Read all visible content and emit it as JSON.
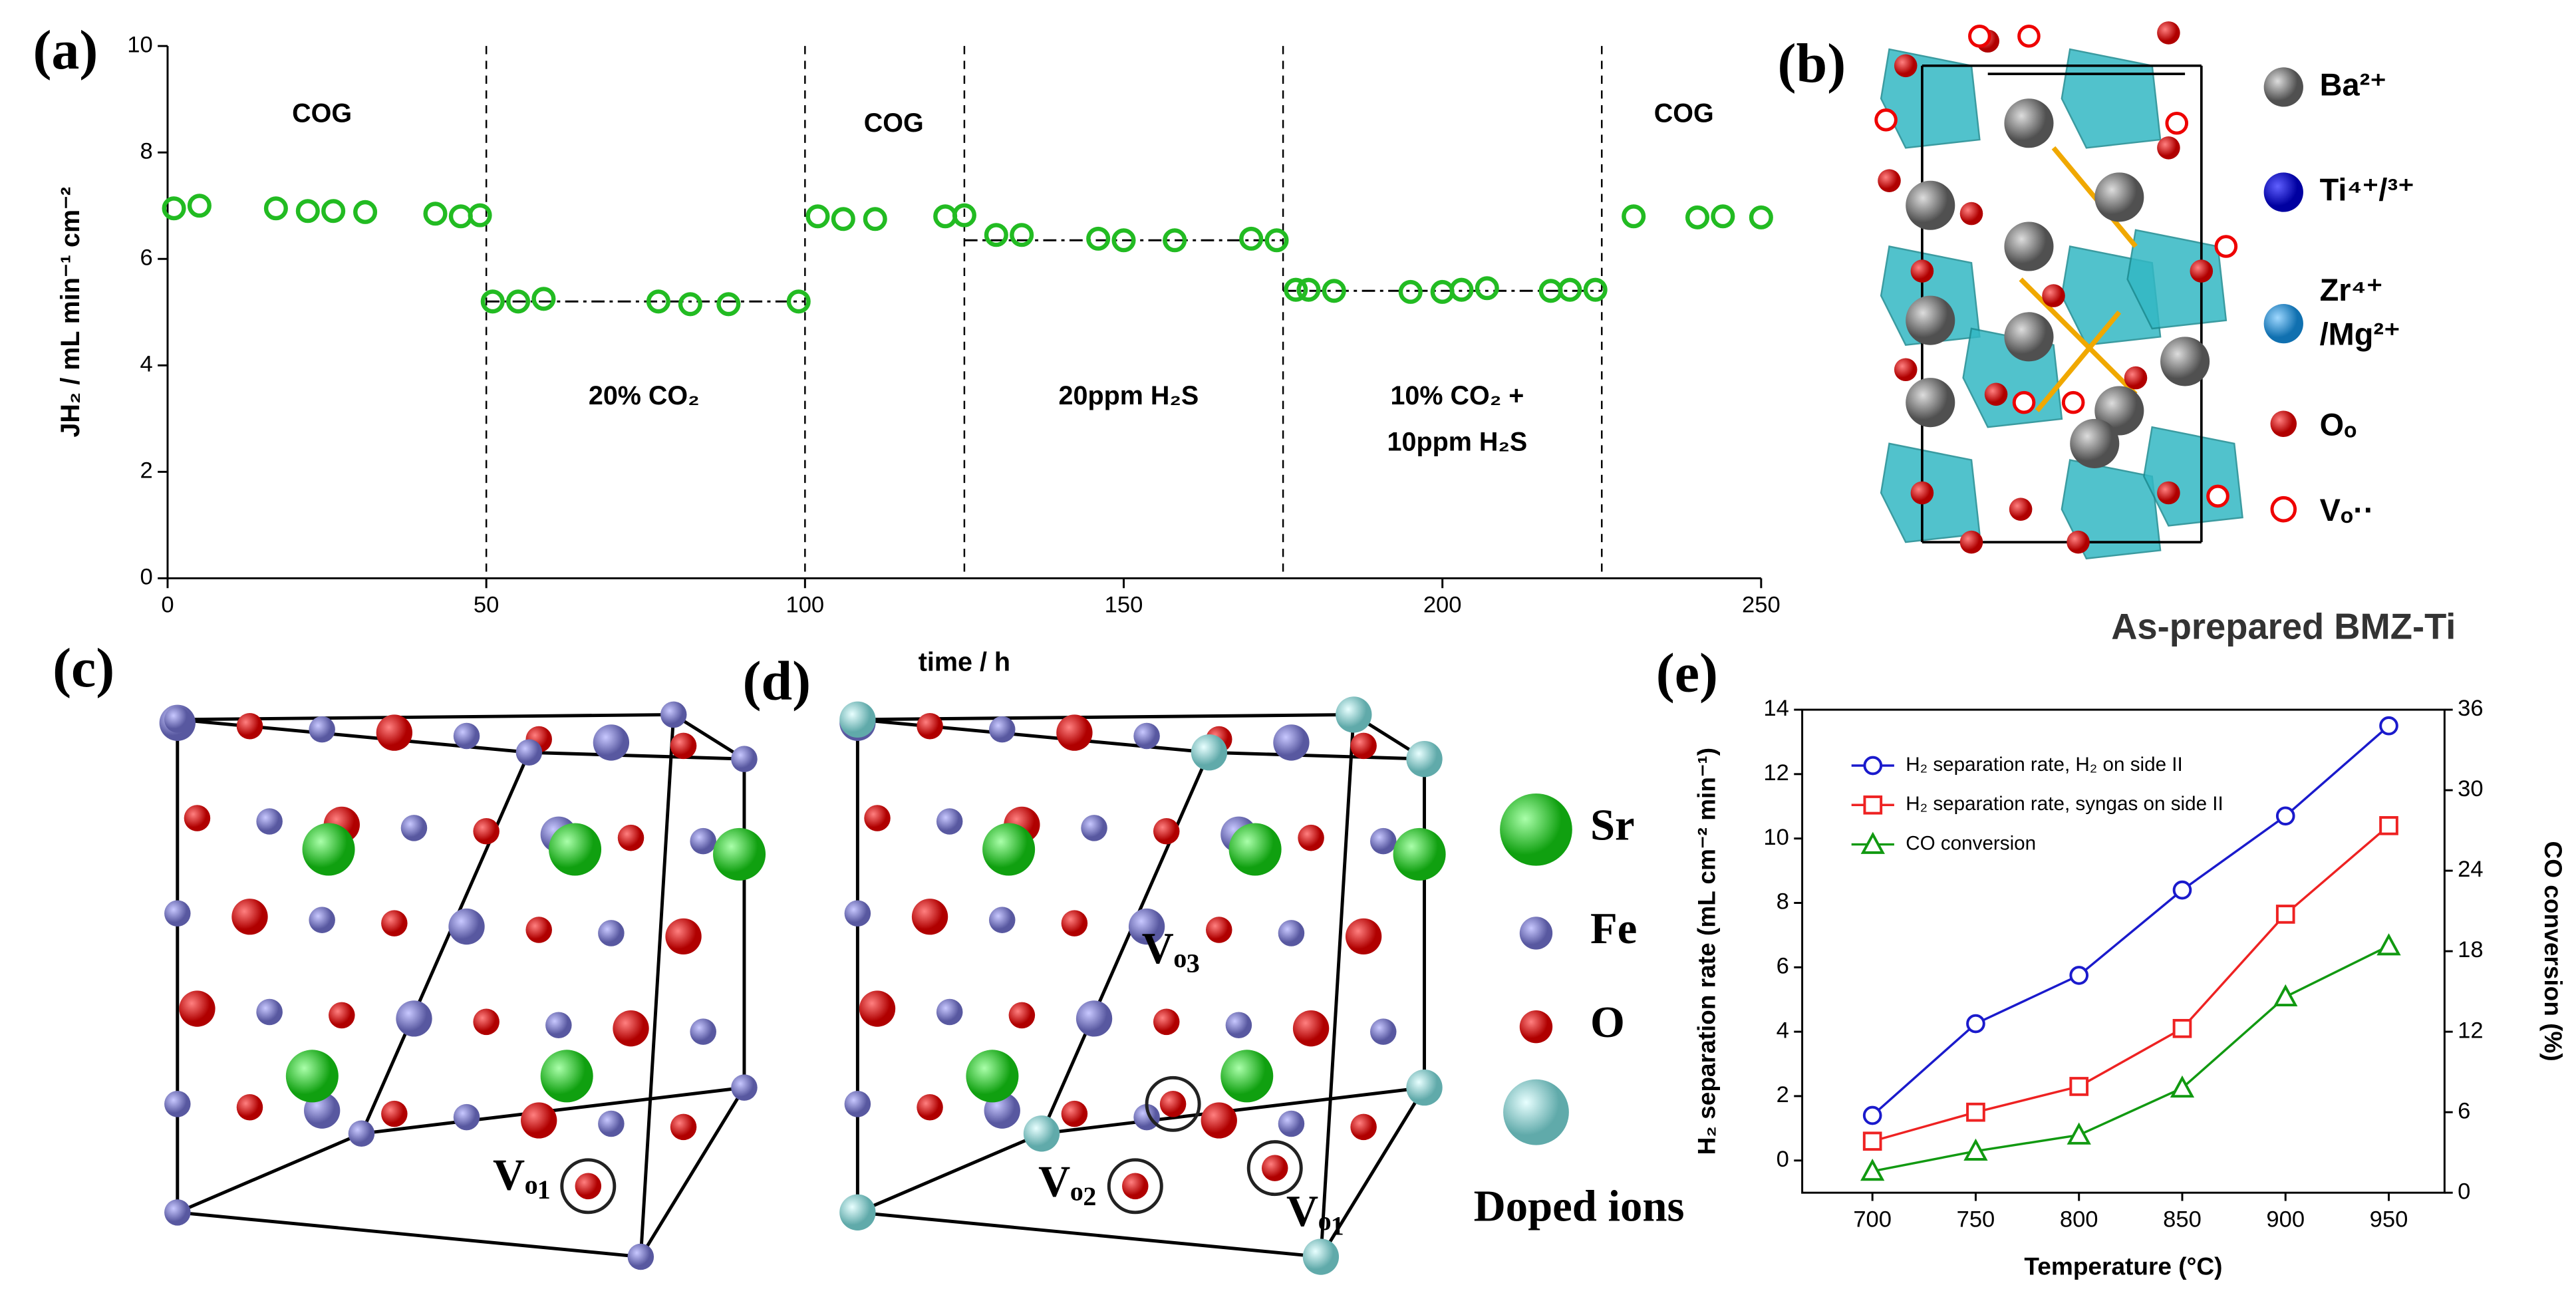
{
  "chart_data": [
    {
      "type": "scatter",
      "panel": "(a)",
      "xlabel": "time / h",
      "ylabel": "JH₂ / mL min⁻¹ cm⁻²",
      "xlim": [
        0,
        250
      ],
      "xticks": [
        0,
        50,
        100,
        150,
        200,
        250
      ],
      "ylim": [
        0,
        10
      ],
      "yticks": [
        0,
        2,
        4,
        6,
        8,
        10
      ],
      "boundaries": [
        50,
        100,
        125,
        175,
        225
      ],
      "reference_lines": [
        {
          "x": [
            50,
            100
          ],
          "y": 5.2
        },
        {
          "x": [
            125,
            175
          ],
          "y": 6.35
        },
        {
          "x": [
            175,
            225
          ],
          "y": 5.4
        }
      ],
      "annotations": [
        "COG",
        "20% CO₂",
        "COG",
        "20ppm H₂S",
        "10% CO₂ +",
        "10ppm H₂S",
        "COG"
      ],
      "series": [
        {
          "color": "#22bb22",
          "x": [
            1,
            5,
            17,
            22,
            26,
            31,
            42,
            46,
            49,
            51,
            55,
            59,
            77,
            82,
            88,
            99,
            102,
            106,
            111,
            122,
            125,
            130,
            134,
            146,
            150,
            158,
            170,
            174,
            177,
            179,
            183,
            195,
            200,
            203,
            207,
            217,
            220,
            224,
            230,
            240,
            244,
            250
          ],
          "values": [
            6.95,
            7.0,
            6.95,
            6.9,
            6.9,
            6.88,
            6.85,
            6.8,
            6.82,
            5.2,
            5.2,
            5.25,
            5.2,
            5.15,
            5.15,
            5.2,
            6.8,
            6.75,
            6.75,
            6.8,
            6.82,
            6.45,
            6.45,
            6.38,
            6.35,
            6.35,
            6.38,
            6.35,
            5.42,
            5.42,
            5.4,
            5.38,
            5.38,
            5.42,
            5.45,
            5.4,
            5.42,
            5.42,
            6.8,
            6.78,
            6.8,
            6.78
          ]
        }
      ]
    },
    {
      "type": "line",
      "panel": "(e)",
      "xlabel": "Temperature (°C)",
      "ylabel": "H₂ separation rate (mL cm⁻² min⁻¹)",
      "y2label": "CO conversion (%)",
      "categories": [
        700,
        750,
        800,
        850,
        900,
        950
      ],
      "xlim": [
        666,
        977
      ],
      "xticks": [
        700,
        750,
        800,
        850,
        900,
        950
      ],
      "ylim": [
        -1,
        14
      ],
      "yticks": [
        0,
        2,
        4,
        6,
        8,
        10,
        12,
        14
      ],
      "y2lim": [
        0,
        36
      ],
      "y2ticks": [
        0,
        6,
        12,
        18,
        24,
        30,
        36
      ],
      "series": [
        {
          "name": "H₂ separation rate, H₂ on side II",
          "color": "#1a1acc",
          "marker": "circle",
          "values": [
            1.4,
            4.25,
            5.75,
            8.4,
            10.7,
            13.5
          ]
        },
        {
          "name": "H₂ separation rate, syngas on side II",
          "color": "#ee2222",
          "marker": "square",
          "values": [
            0.6,
            1.5,
            2.3,
            4.1,
            7.65,
            10.4
          ]
        },
        {
          "name": "CO conversion",
          "color": "#119911",
          "marker": "triangle",
          "axis": "y2",
          "values": [
            1.6,
            3.1,
            4.3,
            7.8,
            14.6,
            18.4
          ]
        }
      ]
    }
  ],
  "figure": {
    "b": {
      "panel": "(b)",
      "legend": [
        "Ba²⁺",
        "Ti⁴⁺/³⁺",
        "Zr⁴⁺",
        "/Mg²⁺",
        "Oₒ",
        "Vₒ··"
      ],
      "caption": "As-prepared BMZ-Ti"
    },
    "c": {
      "panel": "(c)",
      "vacancy": "Vₒ₁"
    },
    "d": {
      "panel": "(d)",
      "vacancies": [
        "Vₒ₃",
        "Vₒ₂",
        "Vₒ₁"
      ],
      "legend": [
        "Sr",
        "Fe",
        "O",
        "Doped ions"
      ]
    }
  }
}
